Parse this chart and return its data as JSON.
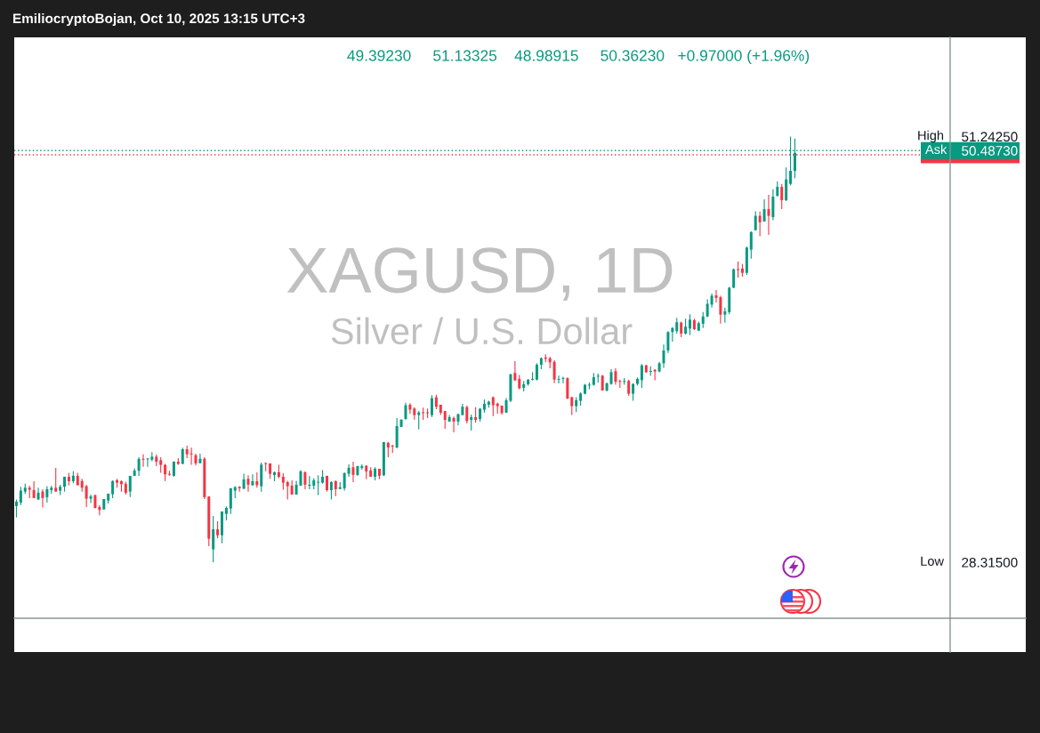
{
  "chart_data": {
    "type": "candlestick",
    "title": "XAGUSD, 1D",
    "subtitle": "Silver / U.S. Dollar",
    "categories": [
      null,
      null,
      null,
      null,
      null,
      null,
      null,
      null,
      null,
      null,
      null,
      null,
      null,
      null,
      null,
      null,
      null,
      null,
      null,
      null,
      null,
      null,
      null,
      null,
      null,
      null,
      null,
      null,
      null,
      null,
      null,
      null,
      null,
      null,
      null,
      null,
      null,
      null,
      null,
      null,
      null,
      null,
      null,
      null,
      null,
      null,
      null,
      null,
      null,
      null,
      null,
      null,
      null,
      null,
      null,
      null,
      null,
      null,
      null,
      null,
      null,
      null,
      null,
      null,
      null,
      null,
      null,
      null,
      null,
      null,
      null,
      null,
      null,
      null,
      null,
      null,
      null,
      null,
      null,
      null,
      null,
      null,
      null,
      null,
      null,
      null,
      null,
      null,
      null,
      null,
      null,
      null,
      null,
      null,
      null,
      null,
      null,
      null,
      null,
      null,
      null,
      null,
      null,
      null,
      null,
      null,
      null,
      null,
      null,
      null,
      null,
      null,
      null,
      null,
      null,
      null,
      null,
      null,
      null,
      null,
      null,
      null,
      null,
      null,
      null,
      null,
      null,
      null,
      null,
      null,
      null,
      null,
      null,
      null,
      null,
      null,
      null,
      null,
      null,
      null,
      null,
      null,
      null,
      null,
      null,
      null,
      null,
      null,
      null,
      null,
      null,
      null,
      null,
      null,
      null,
      null,
      null,
      null,
      null,
      null,
      null,
      null,
      null,
      null,
      null,
      null,
      null,
      null,
      null,
      null,
      null,
      null,
      null,
      null,
      null,
      null,
      null,
      null,
      null,
      null,
      null,
      null,
      null,
      null,
      null,
      null,
      null,
      null,
      null,
      null,
      null,
      null,
      null,
      null,
      null,
      null,
      null,
      null,
      null,
      null,
      null,
      null,
      null,
      null,
      null,
      null,
      null,
      null,
      null,
      null,
      null,
      null,
      null,
      null
    ],
    "ohlc": [
      [
        31.34,
        31.69,
        30.73,
        31.58
      ],
      [
        31.53,
        32.38,
        31.4,
        32.17
      ],
      [
        32.12,
        32.54,
        31.99,
        32.33
      ],
      [
        32.33,
        32.44,
        31.77,
        32.22
      ],
      [
        32.2,
        32.68,
        31.77,
        31.77
      ],
      [
        31.69,
        32.33,
        31.69,
        32.06
      ],
      [
        32.12,
        32.25,
        31.26,
        31.77
      ],
      [
        31.82,
        32.41,
        31.53,
        32.25
      ],
      [
        32.2,
        32.44,
        32.01,
        32.33
      ],
      [
        32.33,
        33.4,
        32.12,
        32.12
      ],
      [
        32.17,
        32.49,
        31.93,
        32.38
      ],
      [
        32.38,
        32.92,
        32.12,
        32.92
      ],
      [
        32.92,
        33.13,
        32.46,
        32.68
      ],
      [
        32.68,
        33.21,
        32.57,
        32.97
      ],
      [
        32.97,
        33.13,
        32.46,
        32.46
      ],
      [
        32.69,
        32.81,
        32.12,
        32.33
      ],
      [
        32.41,
        32.49,
        31.29,
        31.74
      ],
      [
        31.74,
        31.96,
        31.5,
        31.86
      ],
      [
        31.93,
        31.96,
        31.21,
        31.24
      ],
      [
        31.29,
        31.4,
        30.84,
        31.13
      ],
      [
        31.16,
        31.72,
        31.16,
        31.72
      ],
      [
        31.64,
        32.01,
        31.48,
        32.01
      ],
      [
        31.98,
        32.73,
        31.77,
        32.69
      ],
      [
        32.73,
        32.81,
        32.33,
        32.6
      ],
      [
        32.68,
        32.73,
        32.12,
        32.52
      ],
      [
        32.54,
        32.65,
        31.96,
        32.06
      ],
      [
        32.12,
        32.97,
        31.83,
        32.97
      ],
      [
        32.97,
        33.37,
        32.97,
        33.25
      ],
      [
        33.24,
        33.97,
        32.97,
        33.88
      ],
      [
        33.88,
        34.12,
        33.45,
        33.84
      ],
      [
        33.86,
        33.92,
        33.45,
        33.89
      ],
      [
        33.84,
        34.24,
        33.76,
        34.0
      ],
      [
        34.0,
        34.13,
        33.49,
        33.73
      ],
      [
        33.81,
        33.97,
        33.13,
        33.56
      ],
      [
        33.56,
        33.61,
        32.69,
        33.05
      ],
      [
        33.08,
        33.24,
        32.97,
        33.03
      ],
      [
        32.97,
        33.76,
        32.93,
        33.73
      ],
      [
        33.73,
        33.92,
        33.56,
        33.61
      ],
      [
        33.61,
        34.48,
        33.61,
        34.4
      ],
      [
        34.4,
        34.59,
        33.92,
        34.13
      ],
      [
        34.16,
        34.48,
        33.56,
        34.13
      ],
      [
        34.08,
        34.16,
        33.53,
        33.64
      ],
      [
        33.65,
        34.16,
        33.65,
        33.89
      ],
      [
        33.89,
        33.97,
        31.72,
        31.82
      ],
      [
        31.85,
        31.88,
        29.18,
        29.58
      ],
      [
        29.01,
        30.81,
        28.315,
        30.09
      ],
      [
        30.09,
        30.52,
        29.61,
        29.77
      ],
      [
        29.77,
        31.05,
        29.34,
        31.05
      ],
      [
        30.92,
        31.32,
        30.57,
        31.24
      ],
      [
        31.21,
        32.3,
        30.92,
        32.3
      ],
      [
        32.17,
        32.41,
        31.77,
        32.36
      ],
      [
        32.38,
        32.41,
        32.12,
        32.3
      ],
      [
        32.28,
        33.09,
        32.25,
        32.78
      ],
      [
        32.81,
        33.0,
        32.12,
        32.49
      ],
      [
        32.46,
        33.05,
        32.44,
        32.68
      ],
      [
        32.68,
        33.16,
        32.33,
        32.46
      ],
      [
        32.41,
        33.68,
        32.12,
        33.57
      ],
      [
        33.64,
        33.68,
        33.21,
        33.61
      ],
      [
        33.64,
        33.64,
        32.81,
        33.08
      ],
      [
        33.01,
        33.21,
        32.68,
        33.16
      ],
      [
        33.16,
        33.56,
        32.84,
        32.92
      ],
      [
        32.92,
        33.11,
        32.22,
        32.6
      ],
      [
        32.63,
        32.7,
        31.69,
        32.41
      ],
      [
        32.44,
        32.73,
        31.96,
        31.96
      ],
      [
        31.96,
        32.7,
        31.96,
        32.49
      ],
      [
        32.44,
        33.27,
        32.44,
        33.21
      ],
      [
        33.16,
        33.21,
        32.25,
        32.49
      ],
      [
        32.44,
        32.97,
        32.25,
        32.49
      ],
      [
        32.44,
        32.85,
        32.25,
        32.73
      ],
      [
        32.6,
        33.0,
        31.93,
        32.63
      ],
      [
        32.6,
        33.27,
        32.54,
        32.92
      ],
      [
        32.97,
        32.97,
        32.12,
        32.2
      ],
      [
        32.2,
        32.68,
        31.69,
        32.63
      ],
      [
        32.68,
        32.73,
        31.88,
        32.25
      ],
      [
        32.26,
        32.63,
        32.26,
        32.36
      ],
      [
        32.3,
        33.16,
        32.17,
        33.11
      ],
      [
        33.08,
        33.59,
        32.92,
        33.4
      ],
      [
        33.43,
        33.73,
        32.63,
        33.02
      ],
      [
        33.02,
        33.52,
        32.97,
        33.49
      ],
      [
        33.4,
        33.59,
        33.29,
        33.49
      ],
      [
        33.51,
        33.54,
        32.79,
        33.21
      ],
      [
        33.26,
        33.43,
        32.92,
        32.92
      ],
      [
        32.92,
        33.43,
        32.73,
        33.35
      ],
      [
        33.35,
        33.35,
        32.79,
        32.97
      ],
      [
        33.0,
        34.79,
        32.95,
        34.79
      ],
      [
        34.75,
        34.8,
        33.97,
        34.5
      ],
      [
        34.59,
        34.64,
        34.2,
        34.55
      ],
      [
        34.5,
        36.08,
        34.45,
        35.65
      ],
      [
        35.6,
        36.0,
        35.6,
        36.0
      ],
      [
        36.03,
        36.91,
        36.0,
        36.77
      ],
      [
        36.8,
        36.88,
        36.3,
        36.53
      ],
      [
        36.59,
        36.67,
        36.0,
        36.24
      ],
      [
        36.24,
        36.46,
        35.47,
        36.38
      ],
      [
        36.38,
        36.64,
        35.98,
        36.34
      ],
      [
        36.38,
        36.59,
        36.08,
        36.34
      ],
      [
        36.24,
        37.31,
        36.13,
        37.15
      ],
      [
        37.2,
        37.33,
        36.56,
        36.69
      ],
      [
        36.8,
        36.8,
        36.24,
        36.37
      ],
      [
        36.46,
        36.46,
        35.5,
        35.98
      ],
      [
        35.89,
        36.24,
        35.89,
        36.13
      ],
      [
        36.08,
        36.16,
        35.31,
        35.89
      ],
      [
        35.89,
        36.32,
        35.68,
        36.29
      ],
      [
        36.24,
        36.85,
        36.24,
        36.69
      ],
      [
        36.67,
        36.75,
        35.79,
        35.92
      ],
      [
        35.98,
        36.27,
        35.41,
        36.13
      ],
      [
        36.13,
        36.67,
        35.84,
        35.98
      ],
      [
        36.03,
        36.62,
        35.89,
        36.58
      ],
      [
        36.53,
        37.08,
        36.37,
        36.85
      ],
      [
        36.8,
        37.01,
        36.64,
        36.96
      ],
      [
        37.2,
        37.24,
        36.19,
        36.77
      ],
      [
        36.86,
        36.91,
        36.32,
        36.72
      ],
      [
        36.75,
        36.75,
        36.27,
        36.35
      ],
      [
        36.37,
        37.15,
        36.37,
        37.04
      ],
      [
        37.01,
        38.47,
        36.94,
        38.43
      ],
      [
        38.51,
        39.14,
        38.08,
        38.11
      ],
      [
        38.19,
        38.4,
        37.63,
        37.68
      ],
      [
        37.71,
        38.08,
        37.52,
        37.9
      ],
      [
        37.9,
        38.19,
        37.83,
        38.14
      ],
      [
        38.14,
        38.55,
        38.11,
        38.19
      ],
      [
        38.15,
        39.03,
        38.11,
        38.95
      ],
      [
        38.95,
        39.35,
        38.71,
        39.3
      ],
      [
        39.34,
        39.51,
        39.08,
        39.27
      ],
      [
        39.3,
        39.38,
        38.76,
        39.08
      ],
      [
        39.11,
        39.19,
        37.96,
        38.15
      ],
      [
        38.14,
        38.36,
        37.95,
        38.17
      ],
      [
        38.19,
        38.31,
        37.96,
        38.23
      ],
      [
        38.23,
        38.27,
        37.12,
        37.12
      ],
      [
        37.2,
        37.23,
        36.24,
        36.72
      ],
      [
        36.72,
        37.2,
        36.4,
        37.04
      ],
      [
        37.01,
        37.47,
        36.75,
        37.4
      ],
      [
        37.39,
        37.92,
        37.36,
        37.87
      ],
      [
        37.83,
        37.99,
        37.64,
        37.88
      ],
      [
        37.87,
        38.51,
        37.83,
        38.28
      ],
      [
        38.31,
        38.47,
        37.99,
        38.36
      ],
      [
        38.36,
        38.4,
        37.56,
        37.56
      ],
      [
        37.56,
        37.99,
        37.52,
        37.95
      ],
      [
        37.92,
        38.71,
        37.87,
        38.55
      ],
      [
        38.6,
        38.76,
        37.87,
        38.03
      ],
      [
        38.06,
        38.15,
        37.71,
        38.03
      ],
      [
        38.03,
        38.23,
        37.87,
        38.06
      ],
      [
        38.08,
        38.15,
        37.28,
        37.39
      ],
      [
        37.39,
        37.95,
        37.01,
        37.92
      ],
      [
        37.92,
        38.27,
        37.83,
        38.19
      ],
      [
        38.12,
        38.99,
        37.71,
        38.92
      ],
      [
        38.92,
        38.95,
        38.51,
        38.55
      ],
      [
        38.57,
        38.87,
        38.35,
        38.6
      ],
      [
        38.68,
        38.71,
        38.11,
        38.59
      ],
      [
        38.59,
        39.11,
        38.55,
        39.03
      ],
      [
        39.03,
        40.04,
        38.79,
        39.72
      ],
      [
        39.72,
        40.76,
        39.59,
        40.71
      ],
      [
        40.71,
        40.97,
        40.2,
        40.93
      ],
      [
        40.76,
        41.48,
        40.63,
        41.24
      ],
      [
        41.22,
        41.27,
        40.44,
        40.63
      ],
      [
        40.63,
        41.43,
        40.58,
        41.0
      ],
      [
        40.9,
        41.67,
        40.55,
        41.38
      ],
      [
        41.35,
        41.43,
        40.82,
        40.87
      ],
      [
        40.79,
        41.27,
        40.76,
        41.19
      ],
      [
        41.16,
        41.79,
        40.93,
        41.55
      ],
      [
        41.55,
        42.47,
        41.51,
        42.23
      ],
      [
        42.19,
        42.79,
        42.03,
        42.67
      ],
      [
        42.69,
        42.98,
        42.31,
        42.55
      ],
      [
        42.59,
        42.66,
        41.17,
        41.65
      ],
      [
        41.65,
        42.02,
        41.22,
        41.83
      ],
      [
        41.78,
        43.14,
        41.67,
        43.1
      ],
      [
        43.1,
        44.14,
        43.07,
        44.09
      ],
      [
        44.09,
        44.51,
        43.65,
        44.05
      ],
      [
        44.13,
        44.38,
        43.69,
        43.9
      ],
      [
        43.9,
        45.31,
        43.79,
        45.26
      ],
      [
        45.15,
        46.14,
        44.67,
        46.09
      ],
      [
        46.2,
        47.21,
        46.17,
        46.97
      ],
      [
        46.97,
        47.19,
        45.87,
        46.62
      ],
      [
        46.66,
        47.86,
        46.66,
        47.33
      ],
      [
        47.33,
        48.1,
        45.95,
        46.97
      ],
      [
        46.9,
        48.4,
        46.74,
        48.0
      ],
      [
        48.05,
        48.82,
        48.0,
        48.53
      ],
      [
        48.53,
        48.69,
        47.33,
        47.81
      ],
      [
        47.81,
        49.57,
        47.77,
        48.93
      ],
      [
        48.69,
        51.2425,
        48.61,
        49.3923
      ],
      [
        49.3923,
        51.13325,
        48.98915,
        50.3623
      ],
      null,
      null,
      null,
      null,
      null,
      null,
      null,
      null,
      null,
      null,
      null,
      null,
      null,
      null,
      null,
      null,
      null,
      null,
      null,
      null,
      null,
      null,
      null,
      null,
      null,
      null,
      null,
      null,
      null,
      null,
      null,
      null,
      null,
      null,
      null
    ],
    "colors": [
      "#089981",
      "#089981",
      "#089981",
      "#f23645",
      "#f23645",
      "#089981",
      "#f23645",
      "#089981",
      "#089981",
      "#f23645",
      "#089981",
      "#089981",
      "#f23645",
      "#089981",
      "#f23645",
      "#f23645",
      "#f23645",
      "#089981",
      "#f23645",
      "#f23645",
      "#089981",
      "#089981",
      "#089981",
      "#f23645",
      "#f23645",
      "#f23645",
      "#089981",
      "#089981",
      "#089981",
      "#f23645",
      "#089981",
      "#089981",
      "#f23645",
      "#f23645",
      "#f23645",
      "#f23645",
      "#089981",
      "#f23645",
      "#089981",
      "#f23645",
      "#f23645",
      "#f23645",
      "#089981",
      "#f23645",
      "#f23645",
      "#089981",
      "#f23645",
      "#089981",
      "#089981",
      "#089981",
      "#089981",
      "#f23645",
      "#089981",
      "#f23645",
      "#089981",
      "#f23645",
      "#089981",
      "#f23645",
      "#f23645",
      "#089981",
      "#f23645",
      "#f23645",
      "#f23645",
      "#f23645",
      "#089981",
      "#089981",
      "#f23645",
      "#089981",
      "#089981",
      "#089981",
      "#089981",
      "#f23645",
      "#089981",
      "#f23645",
      "#089981",
      "#089981",
      "#089981",
      "#f23645",
      "#089981",
      "#089981",
      "#f23645",
      "#f23645",
      "#089981",
      "#f23645",
      "#089981",
      "#f23645",
      "#f23645",
      "#089981",
      "#089981",
      "#089981",
      "#f23645",
      "#f23645",
      "#089981",
      "#f23645",
      "#f23645",
      "#089981",
      "#f23645",
      "#f23645",
      "#f23645",
      "#089981",
      "#f23645",
      "#089981",
      "#089981",
      "#f23645",
      "#089981",
      "#f23645",
      "#089981",
      "#089981",
      "#089981",
      "#f23645",
      "#f23645",
      "#f23645",
      "#089981",
      "#089981",
      "#f23645",
      "#f23645",
      "#089981",
      "#089981",
      "#089981",
      "#089981",
      "#089981",
      "#f23645",
      "#f23645",
      "#f23645",
      "#089981",
      "#089981",
      "#f23645",
      "#f23645",
      "#089981",
      "#089981",
      "#089981",
      "#089981",
      "#089981",
      "#089981",
      "#f23645",
      "#089981",
      "#089981",
      "#f23645",
      "#f23645",
      "#089981",
      "#f23645",
      "#089981",
      "#089981",
      "#089981",
      "#f23645",
      "#089981",
      "#f23645",
      "#089981",
      "#089981",
      "#089981",
      "#089981",
      "#089981",
      "#f23645",
      "#089981",
      "#089981",
      "#f23645",
      "#089981",
      "#089981",
      "#089981",
      "#089981",
      "#f23645",
      "#f23645",
      "#089981",
      "#089981",
      "#089981",
      "#f23645",
      "#f23645",
      "#089981",
      "#089981",
      "#089981",
      "#f23645",
      "#089981",
      "#f23645",
      "#089981",
      "#089981",
      "#f23645",
      "#089981",
      "#089981",
      "#089981",
      null,
      null,
      null,
      null,
      null,
      null,
      null,
      null,
      null,
      null,
      null,
      null,
      null,
      null,
      null,
      null,
      null,
      null,
      null,
      null,
      null,
      null,
      null,
      null,
      null,
      null,
      null,
      null,
      null,
      null,
      null,
      null,
      null,
      null,
      null
    ],
    "ylim": [
      25.3,
      56.58
    ],
    "yticks": [
      {
        "value": 51.2425,
        "label": "51.24250"
      },
      {
        "value": 50.4873,
        "label": "50.48730"
      },
      {
        "value": 28.315,
        "label": "28.31500"
      }
    ],
    "tick_labels": "y",
    "ref_lines": [
      {
        "axis": "y",
        "value": 50.26,
        "color": "#f23645",
        "line_style": "dotted"
      },
      {
        "axis": "y",
        "value": 50.4873,
        "label": "Ask",
        "color": "#089981",
        "line_style": "dotted"
      }
    ],
    "annotations": [
      "EmiliocryptoBojan, Oct 10, 2025 13:15 UTC+3",
      "49.39230     51.13325    48.98915     50.36230   +0.97000 (+1.96%)",
      "High",
      "Low"
    ]
  }
}
